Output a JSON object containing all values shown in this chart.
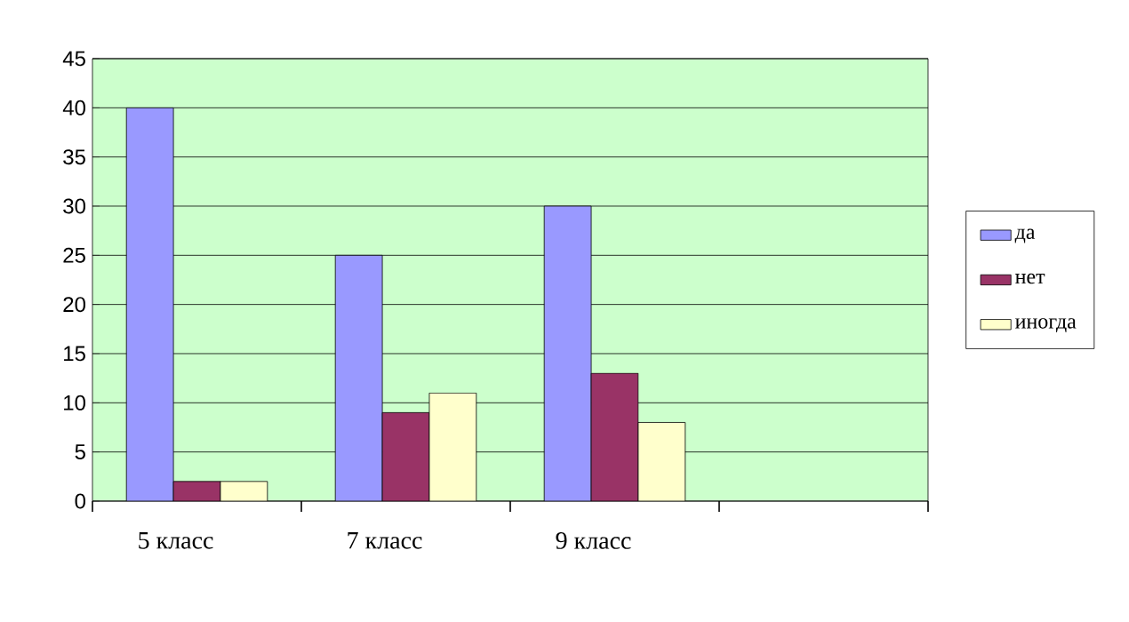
{
  "chart_data": {
    "type": "bar",
    "categories": [
      "5 класс",
      "7 класс",
      "9 класс",
      null
    ],
    "series": [
      {
        "name": "да",
        "color": "#9999ff",
        "values": [
          40,
          25,
          30,
          null
        ]
      },
      {
        "name": "нет",
        "color": "#993366",
        "values": [
          2,
          9,
          13,
          null
        ]
      },
      {
        "name": "иногда",
        "color": "#ffffcc",
        "values": [
          2,
          11,
          8,
          null
        ]
      }
    ],
    "ylim": [
      0,
      45
    ],
    "yticks": [
      0,
      5,
      10,
      15,
      20,
      25,
      30,
      35,
      40,
      45
    ],
    "grid": "y",
    "legend": "right"
  }
}
